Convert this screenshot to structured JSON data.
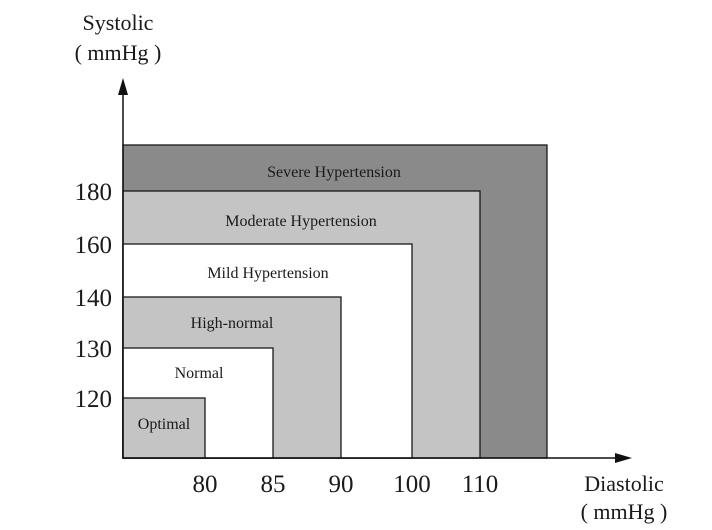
{
  "chart_data": {
    "type": "area",
    "title": "",
    "ylabel_line1": "Systolic",
    "ylabel_line2": "( mmHg )",
    "xlabel_line1": "Diastolic",
    "xlabel_line2": "( mmHg )",
    "x_ticks": [
      "80",
      "85",
      "90",
      "100",
      "110"
    ],
    "y_ticks": [
      "120",
      "130",
      "140",
      "160",
      "180"
    ],
    "zones": [
      {
        "name": "Severe Hypertension",
        "diastolic_max": null,
        "systolic_max": null,
        "color": "#8a8a8a"
      },
      {
        "name": "Moderate Hypertension",
        "diastolic_max": 110,
        "systolic_max": 180,
        "color": "#c4c4c4"
      },
      {
        "name": "Mild Hypertension",
        "diastolic_max": 100,
        "systolic_max": 160,
        "color": "#ffffff"
      },
      {
        "name": "High-normal",
        "diastolic_max": 90,
        "systolic_max": 140,
        "color": "#c4c4c4"
      },
      {
        "name": "Normal",
        "diastolic_max": 85,
        "systolic_max": 130,
        "color": "#ffffff"
      },
      {
        "name": "Optimal",
        "diastolic_max": 80,
        "systolic_max": 120,
        "color": "#c4c4c4"
      }
    ]
  }
}
